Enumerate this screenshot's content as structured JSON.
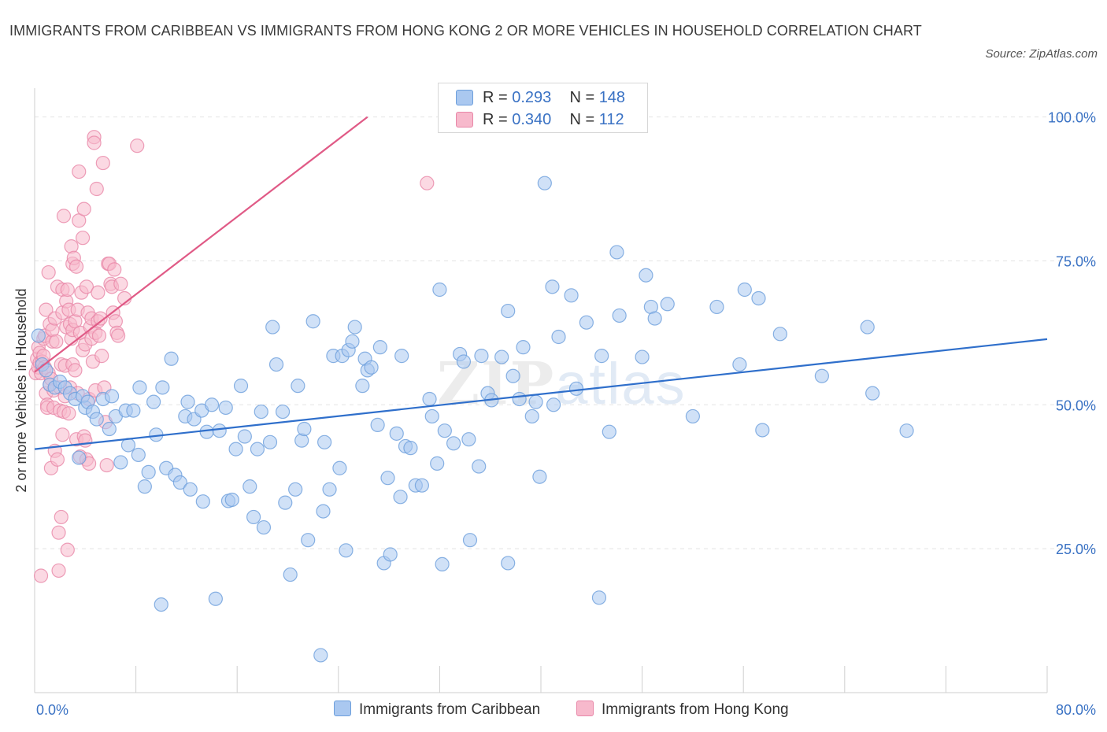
{
  "header": {
    "title": "IMMIGRANTS FROM CARIBBEAN VS IMMIGRANTS FROM HONG KONG 2 OR MORE VEHICLES IN HOUSEHOLD CORRELATION CHART",
    "source": "Source: ZipAtlas.com"
  },
  "watermark": {
    "zip": "ZIP",
    "atlas": "atlas"
  },
  "legend": {
    "rows": [
      {
        "r_label": "R = ",
        "r_value": "0.293",
        "n_label": "N = ",
        "n_value": "148"
      },
      {
        "r_label": "R = ",
        "r_value": "0.340",
        "n_label": "N = ",
        "n_value": "112"
      }
    ]
  },
  "colors": {
    "blue_fill": "#aac8f0",
    "blue_stroke": "#6d9fdc",
    "blue_line": "#2f6fcb",
    "pink_fill": "#f7b9cc",
    "pink_stroke": "#e887a8",
    "pink_line": "#e05a86",
    "grid": "#e3e3e3",
    "axis_label": "#3a72c4"
  },
  "chart_data": {
    "type": "scatter",
    "title": "IMMIGRANTS FROM CARIBBEAN VS IMMIGRANTS FROM HONG KONG 2 OR MORE VEHICLES IN HOUSEHOLD CORRELATION CHART",
    "xlabel": "",
    "ylabel": "2 or more Vehicles in Household",
    "xlim": [
      0,
      80
    ],
    "ylim": [
      0,
      105
    ],
    "x_ticks": [
      "0.0%",
      "80.0%"
    ],
    "y_ticks": [
      {
        "value": 25,
        "label": "25.0%"
      },
      {
        "value": 50,
        "label": "50.0%"
      },
      {
        "value": 75,
        "label": "75.0%"
      },
      {
        "value": 100,
        "label": "100.0%"
      }
    ],
    "grid": "horizontal dashed",
    "legend_position": "bottom-center",
    "series": [
      {
        "name": "Immigrants from Caribbean",
        "color": "blue",
        "r": 0.293,
        "n": 148,
        "trend": {
          "x": [
            0,
            80
          ],
          "y": [
            42.3,
            61.4
          ]
        },
        "points": [
          [
            0.3,
            62.0
          ],
          [
            0.6,
            57.0
          ],
          [
            0.9,
            56.0
          ],
          [
            1.2,
            53.5
          ],
          [
            1.6,
            53.0
          ],
          [
            2.0,
            54.0
          ],
          [
            2.4,
            53.0
          ],
          [
            2.8,
            52.0
          ],
          [
            3.2,
            51.0
          ],
          [
            3.5,
            40.8
          ],
          [
            3.8,
            51.5
          ],
          [
            4.0,
            49.5
          ],
          [
            4.2,
            50.5
          ],
          [
            4.6,
            48.8
          ],
          [
            4.9,
            47.5
          ],
          [
            5.4,
            51.0
          ],
          [
            5.9,
            45.8
          ],
          [
            6.1,
            51.5
          ],
          [
            6.4,
            48.0
          ],
          [
            6.8,
            40.0
          ],
          [
            7.2,
            49.0
          ],
          [
            7.4,
            43.0
          ],
          [
            7.8,
            49.0
          ],
          [
            8.2,
            41.3
          ],
          [
            8.3,
            53.0
          ],
          [
            8.7,
            35.8
          ],
          [
            9.0,
            38.3
          ],
          [
            9.4,
            50.5
          ],
          [
            9.6,
            44.8
          ],
          [
            10.0,
            15.3
          ],
          [
            10.1,
            53.0
          ],
          [
            10.4,
            39.0
          ],
          [
            10.8,
            58.0
          ],
          [
            11.1,
            37.8
          ],
          [
            11.5,
            36.5
          ],
          [
            11.9,
            48.0
          ],
          [
            12.1,
            50.5
          ],
          [
            12.6,
            47.5
          ],
          [
            12.3,
            35.3
          ],
          [
            13.2,
            49.0
          ],
          [
            13.3,
            33.2
          ],
          [
            13.6,
            45.3
          ],
          [
            14.0,
            50.0
          ],
          [
            14.3,
            16.3
          ],
          [
            14.6,
            45.5
          ],
          [
            15.1,
            49.5
          ],
          [
            15.3,
            33.3
          ],
          [
            15.6,
            33.5
          ],
          [
            15.9,
            42.3
          ],
          [
            16.3,
            53.3
          ],
          [
            16.6,
            44.5
          ],
          [
            17.0,
            35.8
          ],
          [
            17.3,
            30.5
          ],
          [
            17.6,
            42.3
          ],
          [
            17.9,
            48.8
          ],
          [
            18.1,
            28.7
          ],
          [
            18.6,
            43.5
          ],
          [
            18.8,
            63.5
          ],
          [
            19.1,
            57.0
          ],
          [
            19.6,
            48.8
          ],
          [
            19.8,
            33.0
          ],
          [
            20.2,
            20.5
          ],
          [
            20.6,
            35.3
          ],
          [
            20.8,
            53.3
          ],
          [
            21.1,
            43.8
          ],
          [
            21.3,
            45.8
          ],
          [
            21.6,
            26.5
          ],
          [
            22.0,
            64.5
          ],
          [
            22.6,
            6.5
          ],
          [
            22.8,
            31.5
          ],
          [
            22.9,
            43.5
          ],
          [
            23.3,
            35.3
          ],
          [
            23.6,
            58.5
          ],
          [
            24.1,
            39.0
          ],
          [
            24.3,
            58.5
          ],
          [
            24.6,
            24.7
          ],
          [
            24.8,
            59.5
          ],
          [
            25.1,
            61.0
          ],
          [
            25.3,
            63.5
          ],
          [
            25.9,
            53.3
          ],
          [
            26.1,
            58.0
          ],
          [
            26.3,
            56.0
          ],
          [
            26.6,
            56.5
          ],
          [
            27.1,
            46.5
          ],
          [
            27.3,
            60.0
          ],
          [
            27.6,
            22.5
          ],
          [
            27.9,
            37.3
          ],
          [
            28.1,
            24.0
          ],
          [
            28.6,
            45.0
          ],
          [
            28.9,
            34.0
          ],
          [
            29.0,
            58.5
          ],
          [
            29.3,
            42.8
          ],
          [
            29.7,
            42.5
          ],
          [
            30.1,
            36.0
          ],
          [
            30.6,
            36.0
          ],
          [
            31.2,
            51.0
          ],
          [
            31.4,
            48.0
          ],
          [
            31.8,
            39.8
          ],
          [
            32.0,
            70.0
          ],
          [
            32.2,
            22.3
          ],
          [
            32.4,
            45.5
          ],
          [
            33.1,
            43.3
          ],
          [
            33.6,
            58.8
          ],
          [
            33.9,
            57.5
          ],
          [
            34.3,
            44.0
          ],
          [
            34.4,
            26.5
          ],
          [
            35.1,
            39.3
          ],
          [
            35.8,
            52.0
          ],
          [
            35.3,
            58.5
          ],
          [
            36.1,
            50.8
          ],
          [
            36.9,
            58.3
          ],
          [
            37.4,
            66.3
          ],
          [
            37.4,
            22.5
          ],
          [
            37.8,
            55.0
          ],
          [
            38.3,
            51.0
          ],
          [
            38.6,
            60.0
          ],
          [
            39.3,
            48.0
          ],
          [
            39.6,
            50.5
          ],
          [
            39.9,
            37.5
          ],
          [
            40.3,
            88.5
          ],
          [
            40.9,
            70.5
          ],
          [
            41.0,
            50.0
          ],
          [
            41.4,
            61.8
          ],
          [
            42.4,
            69.0
          ],
          [
            42.8,
            52.8
          ],
          [
            43.6,
            64.3
          ],
          [
            44.8,
            58.5
          ],
          [
            44.6,
            16.5
          ],
          [
            45.4,
            45.3
          ],
          [
            46.0,
            76.5
          ],
          [
            46.2,
            65.5
          ],
          [
            48.0,
            58.3
          ],
          [
            48.3,
            72.5
          ],
          [
            48.7,
            67.0
          ],
          [
            49.0,
            65.0
          ],
          [
            50.0,
            67.5
          ],
          [
            52.0,
            48.0
          ],
          [
            53.9,
            67.0
          ],
          [
            55.7,
            57.0
          ],
          [
            56.1,
            70.0
          ],
          [
            57.2,
            68.5
          ],
          [
            57.5,
            45.6
          ],
          [
            58.9,
            62.3
          ],
          [
            62.2,
            55.0
          ],
          [
            65.8,
            63.5
          ],
          [
            66.2,
            52.0
          ],
          [
            68.9,
            45.5
          ]
        ]
      },
      {
        "name": "Immigrants from Hong Kong",
        "color": "pink",
        "r": 0.34,
        "n": 112,
        "trend": {
          "x": [
            0,
            26.3
          ],
          "y": [
            55.7,
            100
          ]
        },
        "points": [
          [
            0.1,
            55.5
          ],
          [
            0.2,
            58.0
          ],
          [
            0.3,
            56.5
          ],
          [
            0.3,
            60.0
          ],
          [
            0.4,
            59.0
          ],
          [
            0.4,
            57.3
          ],
          [
            0.5,
            20.3
          ],
          [
            0.5,
            55.5
          ],
          [
            0.6,
            57.5
          ],
          [
            0.7,
            58.5
          ],
          [
            0.7,
            61.5
          ],
          [
            0.8,
            62.0
          ],
          [
            0.8,
            56.5
          ],
          [
            0.9,
            66.5
          ],
          [
            0.9,
            52.0
          ],
          [
            1.0,
            50.0
          ],
          [
            1.0,
            49.5
          ],
          [
            1.1,
            55.5
          ],
          [
            1.1,
            73.0
          ],
          [
            1.2,
            64.0
          ],
          [
            1.2,
            53.5
          ],
          [
            1.3,
            39.0
          ],
          [
            1.3,
            54.5
          ],
          [
            1.4,
            61.0
          ],
          [
            1.4,
            63.0
          ],
          [
            1.5,
            52.5
          ],
          [
            1.5,
            49.5
          ],
          [
            1.6,
            42.0
          ],
          [
            1.6,
            65.0
          ],
          [
            1.7,
            61.0
          ],
          [
            1.8,
            40.5
          ],
          [
            1.8,
            70.5
          ],
          [
            1.9,
            27.8
          ],
          [
            1.9,
            21.2
          ],
          [
            2.0,
            53.0
          ],
          [
            2.0,
            49.0
          ],
          [
            2.1,
            30.5
          ],
          [
            2.1,
            57.0
          ],
          [
            2.2,
            66.0
          ],
          [
            2.2,
            70.0
          ],
          [
            2.2,
            44.8
          ],
          [
            2.3,
            82.8
          ],
          [
            2.3,
            48.8
          ],
          [
            2.4,
            56.8
          ],
          [
            2.4,
            51.5
          ],
          [
            2.5,
            63.5
          ],
          [
            2.5,
            68.0
          ],
          [
            2.6,
            70.0
          ],
          [
            2.6,
            24.8
          ],
          [
            2.7,
            66.5
          ],
          [
            2.7,
            48.5
          ],
          [
            2.8,
            53.0
          ],
          [
            2.8,
            64.0
          ],
          [
            2.9,
            77.5
          ],
          [
            2.9,
            61.5
          ],
          [
            3.0,
            57.0
          ],
          [
            3.0,
            63.0
          ],
          [
            3.0,
            74.5
          ],
          [
            3.1,
            75.5
          ],
          [
            3.2,
            64.5
          ],
          [
            3.2,
            56.0
          ],
          [
            3.3,
            74.0
          ],
          [
            3.3,
            44.0
          ],
          [
            3.4,
            66.5
          ],
          [
            3.4,
            52.0
          ],
          [
            3.5,
            82.0
          ],
          [
            3.5,
            90.5
          ],
          [
            3.6,
            41.0
          ],
          [
            3.6,
            62.5
          ],
          [
            3.7,
            69.5
          ],
          [
            3.8,
            79.0
          ],
          [
            3.8,
            59.5
          ],
          [
            3.9,
            84.0
          ],
          [
            3.9,
            44.5
          ],
          [
            4.0,
            60.5
          ],
          [
            4.0,
            43.8
          ],
          [
            4.1,
            70.5
          ],
          [
            4.1,
            40.5
          ],
          [
            4.2,
            66.0
          ],
          [
            4.3,
            39.8
          ],
          [
            4.3,
            51.0
          ],
          [
            4.4,
            63.5
          ],
          [
            4.5,
            65.0
          ],
          [
            4.5,
            61.5
          ],
          [
            4.6,
            57.5
          ],
          [
            4.7,
            96.5
          ],
          [
            4.7,
            95.5
          ],
          [
            4.8,
            52.5
          ],
          [
            4.8,
            62.5
          ],
          [
            4.9,
            87.5
          ],
          [
            5.0,
            64.5
          ],
          [
            5.0,
            69.5
          ],
          [
            5.1,
            62.0
          ],
          [
            5.2,
            65.0
          ],
          [
            5.3,
            58.5
          ],
          [
            5.4,
            92.0
          ],
          [
            5.5,
            53.0
          ],
          [
            5.6,
            47.0
          ],
          [
            5.7,
            39.5
          ],
          [
            5.8,
            74.5
          ],
          [
            5.9,
            74.5
          ],
          [
            6.0,
            71.0
          ],
          [
            6.1,
            70.5
          ],
          [
            6.2,
            66.0
          ],
          [
            6.3,
            73.5
          ],
          [
            6.4,
            64.5
          ],
          [
            6.5,
            62.5
          ],
          [
            6.6,
            62.0
          ],
          [
            6.8,
            71.0
          ],
          [
            7.1,
            68.5
          ],
          [
            8.1,
            95.0
          ],
          [
            31.0,
            88.5
          ]
        ]
      }
    ]
  },
  "bottom_legend": {
    "items": [
      {
        "label": "Immigrants from Caribbean"
      },
      {
        "label": "Immigrants from Hong Kong"
      }
    ]
  }
}
